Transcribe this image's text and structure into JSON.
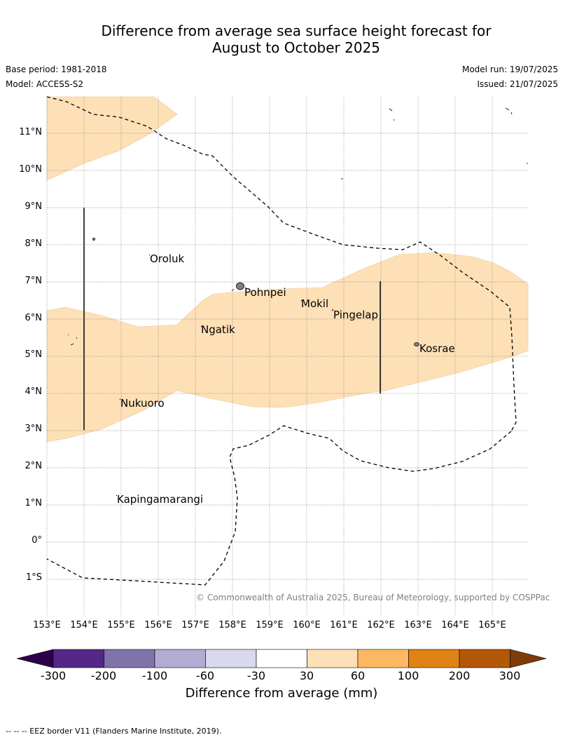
{
  "title_line1": "Difference from average sea surface height forecast for",
  "title_line2": "August to October 2025",
  "base_period": "Base period: 1981-2018",
  "model": "Model: ACCESS-S2",
  "model_run": "Model run: 19/07/2025",
  "issued": "Issued: 21/07/2025",
  "copyright": "© Commonwealth of Australia 2025, Bureau of Meteorology, supported by COSPPac",
  "footnote": "--  --  -- EEZ border V11 (Flanders Marine Institute, 2019).",
  "lat_labels": [
    "11°N",
    "10°N",
    "9°N",
    "8°N",
    "7°N",
    "6°N",
    "5°N",
    "4°N",
    "3°N",
    "2°N",
    "1°N",
    "0°",
    "1°S"
  ],
  "lon_labels": [
    "153°E",
    "154°E",
    "155°E",
    "156°E",
    "157°E",
    "158°E",
    "159°E",
    "160°E",
    "161°E",
    "162°E",
    "163°E",
    "164°E",
    "165°E"
  ],
  "places": {
    "oroluk": "Oroluk",
    "pohnpei": "Pohnpei",
    "mokil": "Mokil",
    "pingelap": "Pingelap",
    "ngatik": "Ngatik",
    "kosrae": "Kosrae",
    "nukuoro": "Nukuoro",
    "kapingamarangi": "Kapingamarangi"
  },
  "colorbar": {
    "title": "Difference from average (mm)",
    "ticks": [
      "-300",
      "-200",
      "-100",
      "-60",
      "-30",
      "30",
      "60",
      "100",
      "200",
      "300"
    ],
    "colors": [
      "#2d004b",
      "#542788",
      "#8073ac",
      "#b2abd2",
      "#d8daeb",
      "#ffffff",
      "#fee0b6",
      "#fdb863",
      "#e08214",
      "#b35806",
      "#7f3b08"
    ]
  },
  "map_colors": {
    "anomaly_30_60": "#fee0b6",
    "grid": "#808080",
    "eez": "#000000"
  }
}
